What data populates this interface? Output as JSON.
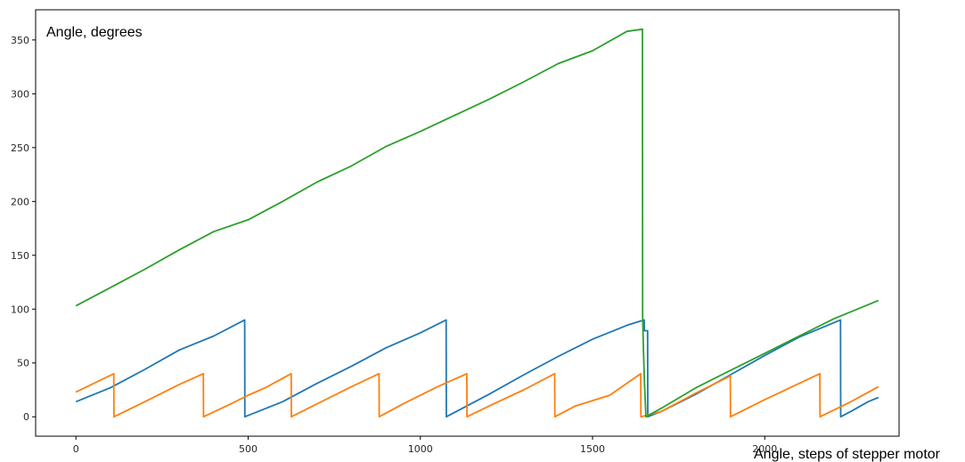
{
  "chart_data": {
    "type": "line",
    "ylabel": "Angle, degrees",
    "xlabel": "Angle, steps of stepper motor",
    "xlim": [
      -117,
      2390
    ],
    "ylim": [
      -18,
      378
    ],
    "x_ticks": [
      0,
      500,
      1000,
      1500,
      2000
    ],
    "y_ticks": [
      0,
      50,
      100,
      150,
      200,
      250,
      300,
      350
    ],
    "grid": false,
    "legend": "none",
    "series": [
      {
        "color": "#1f77b4",
        "points": [
          [
            0,
            14
          ],
          [
            100,
            27
          ],
          [
            200,
            44
          ],
          [
            300,
            62
          ],
          [
            400,
            75
          ],
          [
            490,
            90
          ],
          [
            490.5,
            0
          ],
          [
            600,
            14
          ],
          [
            700,
            31
          ],
          [
            800,
            47
          ],
          [
            900,
            64
          ],
          [
            1000,
            78
          ],
          [
            1075,
            90
          ],
          [
            1075.5,
            0
          ],
          [
            1200,
            21
          ],
          [
            1300,
            39
          ],
          [
            1400,
            56
          ],
          [
            1500,
            72
          ],
          [
            1600,
            85
          ],
          [
            1650,
            90
          ],
          [
            1650.5,
            80
          ],
          [
            1660,
            80
          ],
          [
            1660.5,
            0
          ],
          [
            1700,
            5
          ],
          [
            1800,
            21
          ],
          [
            1900,
            39
          ],
          [
            2000,
            57
          ],
          [
            2100,
            74
          ],
          [
            2220,
            90
          ],
          [
            2220.5,
            0
          ],
          [
            2250,
            5
          ],
          [
            2300,
            14
          ],
          [
            2330,
            18
          ]
        ]
      },
      {
        "color": "#ff7f0e",
        "points": [
          [
            0,
            23
          ],
          [
            110,
            40
          ],
          [
            110.5,
            0
          ],
          [
            200,
            14
          ],
          [
            300,
            30
          ],
          [
            370,
            40
          ],
          [
            370.5,
            0
          ],
          [
            450,
            12
          ],
          [
            500,
            20
          ],
          [
            550,
            27
          ],
          [
            625,
            40
          ],
          [
            625.5,
            0
          ],
          [
            700,
            12
          ],
          [
            800,
            28
          ],
          [
            880,
            40
          ],
          [
            880.5,
            0
          ],
          [
            950,
            12
          ],
          [
            1050,
            28
          ],
          [
            1135,
            40
          ],
          [
            1135.5,
            0
          ],
          [
            1200,
            10
          ],
          [
            1300,
            25
          ],
          [
            1390,
            40
          ],
          [
            1390.5,
            0
          ],
          [
            1450,
            10
          ],
          [
            1550,
            20
          ],
          [
            1640,
            40
          ],
          [
            1640.5,
            0
          ],
          [
            1700,
            5
          ],
          [
            1800,
            22
          ],
          [
            1900,
            38
          ],
          [
            1900.5,
            0
          ],
          [
            2000,
            16
          ],
          [
            2100,
            31
          ],
          [
            2160,
            40
          ],
          [
            2160.5,
            0
          ],
          [
            2250,
            14
          ],
          [
            2330,
            28
          ]
        ]
      },
      {
        "color": "#2ca02c",
        "points": [
          [
            0,
            103
          ],
          [
            100,
            120
          ],
          [
            200,
            137
          ],
          [
            300,
            155
          ],
          [
            400,
            172
          ],
          [
            500,
            183
          ],
          [
            600,
            200
          ],
          [
            700,
            218
          ],
          [
            800,
            233
          ],
          [
            900,
            251
          ],
          [
            1000,
            265
          ],
          [
            1100,
            280
          ],
          [
            1200,
            295
          ],
          [
            1300,
            311
          ],
          [
            1400,
            328
          ],
          [
            1500,
            340
          ],
          [
            1600,
            358
          ],
          [
            1645,
            360
          ],
          [
            1645.5,
            95
          ],
          [
            1648,
            60
          ],
          [
            1651,
            30
          ],
          [
            1655,
            0
          ],
          [
            1700,
            8
          ],
          [
            1800,
            27
          ],
          [
            1900,
            43
          ],
          [
            2000,
            59
          ],
          [
            2100,
            75
          ],
          [
            2200,
            91
          ],
          [
            2330,
            108
          ]
        ]
      }
    ]
  }
}
